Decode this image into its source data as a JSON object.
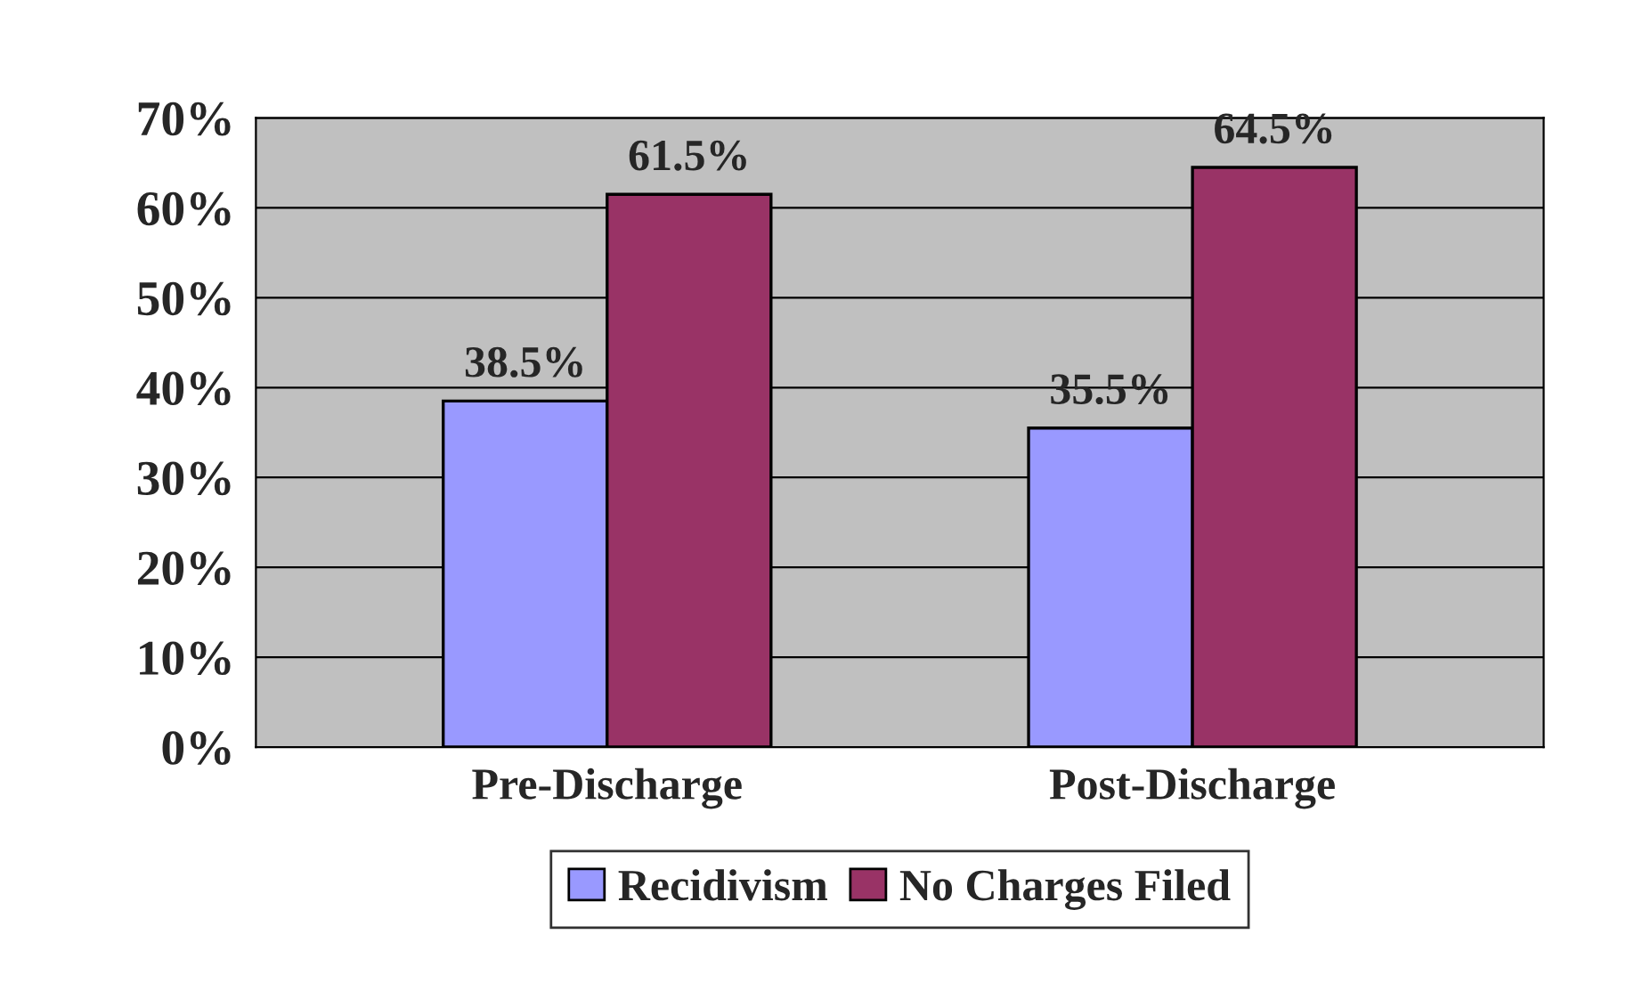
{
  "chart_data": {
    "type": "bar",
    "categories": [
      "Pre-Discharge",
      "Post-Discharge"
    ],
    "series": [
      {
        "name": "Recidivism",
        "color": "#9999ff",
        "values": [
          38.5,
          35.5
        ],
        "value_labels": [
          "38.5%",
          "35.5%"
        ]
      },
      {
        "name": "No Charges Filed",
        "color": "#993366",
        "values": [
          61.5,
          64.5
        ],
        "value_labels": [
          "61.5%",
          "64.5%"
        ]
      }
    ],
    "ylim": [
      0,
      70
    ],
    "yticks": [
      {
        "value": 0,
        "label": "0%"
      },
      {
        "value": 10,
        "label": "10%"
      },
      {
        "value": 20,
        "label": "20%"
      },
      {
        "value": 30,
        "label": "30%"
      },
      {
        "value": 40,
        "label": "40%"
      },
      {
        "value": 50,
        "label": "50%"
      },
      {
        "value": 60,
        "label": "60%"
      },
      {
        "value": 70,
        "label": "70%"
      }
    ],
    "grid": "y",
    "legend": "bottom"
  }
}
